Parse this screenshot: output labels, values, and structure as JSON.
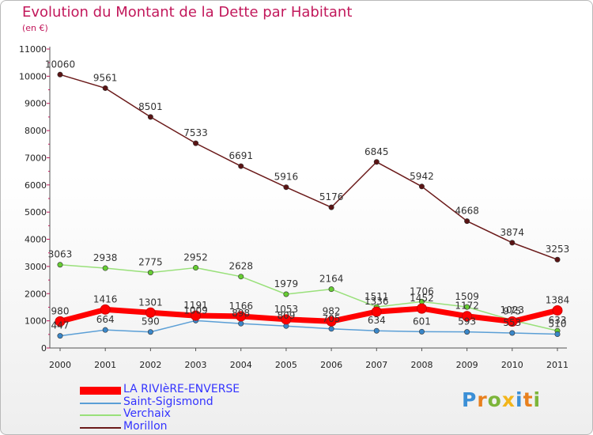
{
  "title": "Evolution du Montant de la Dette par Habitant",
  "subtitle": "(en €)",
  "logo": {
    "text": "Proxiti",
    "colors": [
      "#3b8fd6",
      "#e8801e",
      "#7cb53a",
      "#f2b51b",
      "#3b8fd6",
      "#e8801e",
      "#7cb53a"
    ]
  },
  "chart_data": {
    "type": "line",
    "x": [
      "2000",
      "2001",
      "2002",
      "2003",
      "2004",
      "2005",
      "2006",
      "2007",
      "2008",
      "2009",
      "2010",
      "2011"
    ],
    "ylim": [
      0,
      11000
    ],
    "yticks": [
      0,
      1000,
      2000,
      3000,
      4000,
      5000,
      6000,
      7000,
      8000,
      9000,
      10000,
      11000
    ],
    "grid": false,
    "legend_position": "bottom-left",
    "series": [
      {
        "name": "Morillon",
        "color": "#6b1a1a",
        "marker": "#5a1414",
        "values": [
          10060,
          9561,
          8501,
          7533,
          6691,
          5916,
          5176,
          6845,
          5942,
          4668,
          3874,
          3253
        ],
        "labels": [
          "10060",
          "9561",
          "8501",
          "7533",
          "6691",
          "5916",
          "5176",
          "6845",
          "5942",
          "4668",
          "3874",
          "3253"
        ]
      },
      {
        "name": "Verchaix",
        "color": "#99e07a",
        "marker": "#66cc33",
        "values": [
          3063,
          2938,
          2775,
          2952,
          2628,
          1979,
          2164,
          1511,
          1706,
          1509,
          1023,
          633
        ],
        "labels": [
          "3063",
          "2938",
          "2775",
          "2952",
          "2628",
          "1979",
          "2164",
          "1511",
          "1706",
          "1509",
          "1023",
          "633"
        ]
      },
      {
        "name": "Saint-Sigismond",
        "color": "#5b9fd6",
        "marker": "#3a87c9",
        "values": [
          447,
          664,
          590,
          1009,
          898,
          809,
          705,
          634,
          601,
          593,
          553,
          510
        ],
        "labels": [
          "447",
          "664",
          "590",
          "1009",
          "898",
          "809",
          "705",
          "634",
          "601",
          "593",
          "553",
          "510"
        ]
      },
      {
        "name": "LA RIVIèRE-ENVERSE",
        "color": "#ff0000",
        "marker": "#ff0000",
        "values": [
          980,
          1416,
          1301,
          1191,
          1166,
          1053,
          982,
          1336,
          1452,
          1172,
          975,
          1384
        ],
        "labels": [
          "980",
          "1416",
          "1301",
          "1191",
          "1166",
          "1053",
          "982",
          "1336",
          "1452",
          "1172",
          "975",
          "1384"
        ]
      }
    ],
    "legend_order": [
      "LA RIVIèRE-ENVERSE",
      "Saint-Sigismond",
      "Verchaix",
      "Morillon"
    ]
  }
}
